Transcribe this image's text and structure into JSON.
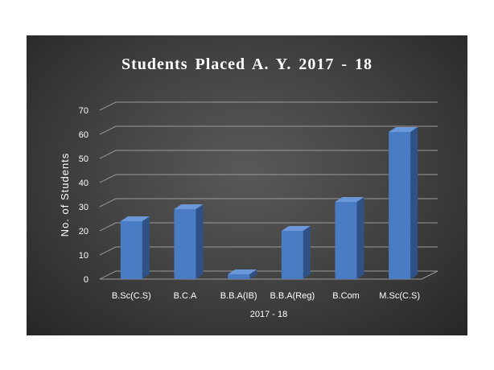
{
  "chart_data": {
    "type": "bar",
    "title": "Students  Placed A. Y. 2017 - 18",
    "xlabel": "2017 - 18",
    "ylabel": "No. of Students",
    "categories": [
      "B.Sc(C.S)",
      "B.C.A",
      "B.B.A(IB)",
      "B.B.A(Reg)",
      "B.Com",
      "M.Sc(C.S)"
    ],
    "series": [
      {
        "values": [
          24,
          29,
          2,
          20,
          32,
          61
        ]
      }
    ],
    "ylim": [
      0,
      70
    ],
    "yticks": [
      0,
      10,
      20,
      30,
      40,
      50,
      60,
      70
    ],
    "grid": true,
    "legend": "none",
    "style": "3d-column",
    "colors": {
      "bar_front": "#4a7cc4",
      "bar_side": "#2f5186",
      "bar_top": "#6a98d8",
      "background": "#404040",
      "gridline": "#9a9a9a",
      "text": "#ffffff"
    }
  }
}
